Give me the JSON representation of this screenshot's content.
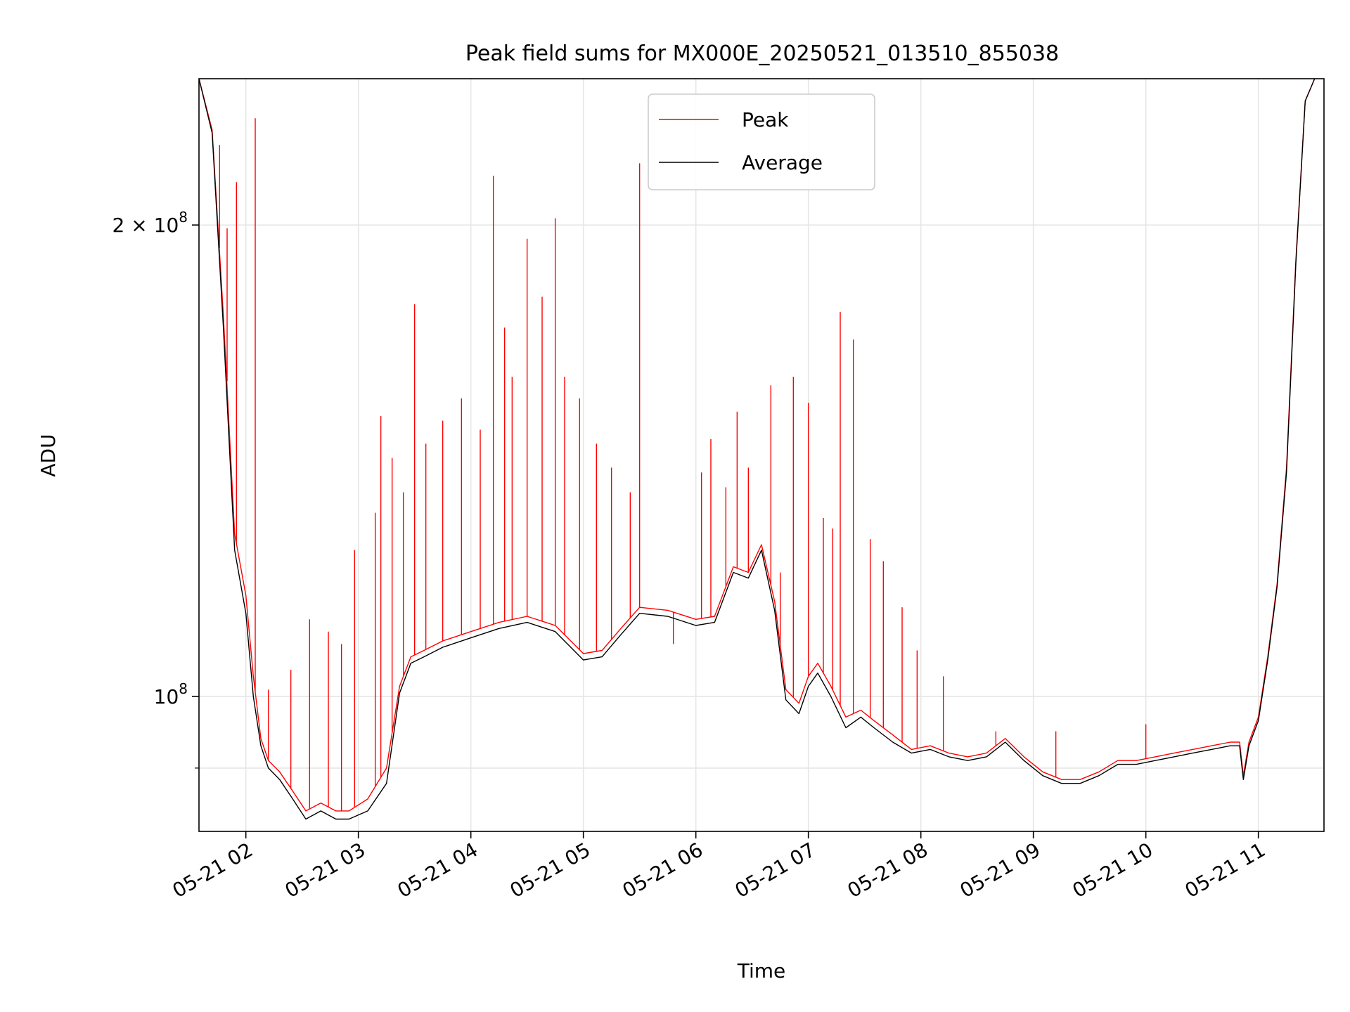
{
  "chart_data": {
    "type": "line",
    "title": "Peak field sums for MX000E_20250521_013510_855038",
    "xlabel": "Time",
    "ylabel": "ADU",
    "y_scale": "log",
    "xlim": [
      "2025-05-21 01:35",
      "2025-05-21 11:35"
    ],
    "ylim": [
      82000000,
      248000000
    ],
    "x_ticks": [
      "2025-05-21 02:00",
      "2025-05-21 03:00",
      "2025-05-21 04:00",
      "2025-05-21 05:00",
      "2025-05-21 06:00",
      "2025-05-21 07:00",
      "2025-05-21 08:00",
      "2025-05-21 09:00",
      "2025-05-21 10:00",
      "2025-05-21 11:00"
    ],
    "x_tick_labels": [
      "05-21 02",
      "05-21 03",
      "05-21 04",
      "05-21 05",
      "05-21 06",
      "05-21 07",
      "05-21 08",
      "05-21 09",
      "05-21 10",
      "05-21 11"
    ],
    "y_ticks": [
      {
        "value": 100000000,
        "base": "10",
        "exp": "8",
        "mantissa": ""
      },
      {
        "value": 200000000,
        "base": "10",
        "exp": "8",
        "mantissa": "2 × "
      }
    ],
    "y_minor_ticks": [
      90000000
    ],
    "grid": true,
    "legend_position": "upper center",
    "series": [
      {
        "name": "Peak",
        "color": "#ff0000",
        "x": [
          "2025-05-21 01:35",
          "2025-05-21 01:42",
          "2025-05-21 01:48",
          "2025-05-21 01:54",
          "2025-05-21 02:00",
          "2025-05-21 02:04",
          "2025-05-21 02:08",
          "2025-05-21 02:12",
          "2025-05-21 02:18",
          "2025-05-21 02:25",
          "2025-05-21 02:32",
          "2025-05-21 02:40",
          "2025-05-21 02:48",
          "2025-05-21 02:55",
          "2025-05-21 03:05",
          "2025-05-21 03:15",
          "2025-05-21 03:22",
          "2025-05-21 03:28",
          "2025-05-21 03:35",
          "2025-05-21 03:45",
          "2025-05-21 04:00",
          "2025-05-21 04:15",
          "2025-05-21 04:30",
          "2025-05-21 04:45",
          "2025-05-21 05:00",
          "2025-05-21 05:10",
          "2025-05-21 05:20",
          "2025-05-21 05:30",
          "2025-05-21 05:45",
          "2025-05-21 06:00",
          "2025-05-21 06:10",
          "2025-05-21 06:20",
          "2025-05-21 06:28",
          "2025-05-21 06:35",
          "2025-05-21 06:42",
          "2025-05-21 06:48",
          "2025-05-21 06:55",
          "2025-05-21 07:00",
          "2025-05-21 07:05",
          "2025-05-21 07:12",
          "2025-05-21 07:20",
          "2025-05-21 07:28",
          "2025-05-21 07:35",
          "2025-05-21 07:45",
          "2025-05-21 07:55",
          "2025-05-21 08:05",
          "2025-05-21 08:15",
          "2025-05-21 08:25",
          "2025-05-21 08:35",
          "2025-05-21 08:45",
          "2025-05-21 08:55",
          "2025-05-21 09:05",
          "2025-05-21 09:15",
          "2025-05-21 09:25",
          "2025-05-21 09:35",
          "2025-05-21 09:45",
          "2025-05-21 09:55",
          "2025-05-21 10:05",
          "2025-05-21 10:15",
          "2025-05-21 10:25",
          "2025-05-21 10:35",
          "2025-05-21 10:45",
          "2025-05-21 10:50",
          "2025-05-21 10:52",
          "2025-05-21 10:55",
          "2025-05-21 11:00",
          "2025-05-21 11:05",
          "2025-05-21 11:10",
          "2025-05-21 11:15",
          "2025-05-21 11:20",
          "2025-05-21 11:25",
          "2025-05-21 11:30"
        ],
        "y": [
          248000000,
          230000000,
          175000000,
          127000000,
          116000000,
          103000000,
          94000000,
          91000000,
          89500000,
          87000000,
          84500000,
          85500000,
          84500000,
          84500000,
          86000000,
          90000000,
          101500000,
          106000000,
          107000000,
          108500000,
          110000000,
          111500000,
          112500000,
          111000000,
          106500000,
          107000000,
          110500000,
          114000000,
          113500000,
          112000000,
          112500000,
          121000000,
          120000000,
          125000000,
          115000000,
          101000000,
          99000000,
          103000000,
          105000000,
          101500000,
          97000000,
          98000000,
          96500000,
          94500000,
          92500000,
          93000000,
          92000000,
          91500000,
          92000000,
          94000000,
          91500000,
          89500000,
          88500000,
          88500000,
          89500000,
          91000000,
          91000000,
          91500000,
          92000000,
          92500000,
          93000000,
          93500000,
          93500000,
          89000000,
          93500000,
          97000000,
          106000000,
          118000000,
          140000000,
          190000000,
          240000000,
          248000000
        ],
        "spikes": [
          {
            "x": "2025-05-21 01:46",
            "y": 225000000
          },
          {
            "x": "2025-05-21 01:50",
            "y": 199000000
          },
          {
            "x": "2025-05-21 01:55",
            "y": 213000000
          },
          {
            "x": "2025-05-21 02:05",
            "y": 234000000
          },
          {
            "x": "2025-05-21 02:12",
            "y": 101000000
          },
          {
            "x": "2025-05-21 02:24",
            "y": 104000000
          },
          {
            "x": "2025-05-21 02:34",
            "y": 112000000
          },
          {
            "x": "2025-05-21 02:44",
            "y": 110000000
          },
          {
            "x": "2025-05-21 02:51",
            "y": 108000000
          },
          {
            "x": "2025-05-21 02:58",
            "y": 124000000
          },
          {
            "x": "2025-05-21 03:09",
            "y": 131000000
          },
          {
            "x": "2025-05-21 03:12",
            "y": 151000000
          },
          {
            "x": "2025-05-21 03:18",
            "y": 142000000
          },
          {
            "x": "2025-05-21 03:24",
            "y": 135000000
          },
          {
            "x": "2025-05-21 03:30",
            "y": 178000000
          },
          {
            "x": "2025-05-21 03:36",
            "y": 145000000
          },
          {
            "x": "2025-05-21 03:45",
            "y": 150000000
          },
          {
            "x": "2025-05-21 03:55",
            "y": 155000000
          },
          {
            "x": "2025-05-21 04:05",
            "y": 148000000
          },
          {
            "x": "2025-05-21 04:12",
            "y": 215000000
          },
          {
            "x": "2025-05-21 04:18",
            "y": 172000000
          },
          {
            "x": "2025-05-21 04:22",
            "y": 160000000
          },
          {
            "x": "2025-05-21 04:30",
            "y": 196000000
          },
          {
            "x": "2025-05-21 04:38",
            "y": 180000000
          },
          {
            "x": "2025-05-21 04:45",
            "y": 202000000
          },
          {
            "x": "2025-05-21 04:50",
            "y": 160000000
          },
          {
            "x": "2025-05-21 04:58",
            "y": 155000000
          },
          {
            "x": "2025-05-21 05:07",
            "y": 145000000
          },
          {
            "x": "2025-05-21 05:15",
            "y": 140000000
          },
          {
            "x": "2025-05-21 05:25",
            "y": 135000000
          },
          {
            "x": "2025-05-21 05:30",
            "y": 219000000
          },
          {
            "x": "2025-05-21 05:48",
            "y": 108000000
          },
          {
            "x": "2025-05-21 06:03",
            "y": 139000000
          },
          {
            "x": "2025-05-21 06:08",
            "y": 146000000
          },
          {
            "x": "2025-05-21 06:16",
            "y": 136000000
          },
          {
            "x": "2025-05-21 06:22",
            "y": 152000000
          },
          {
            "x": "2025-05-21 06:28",
            "y": 140000000
          },
          {
            "x": "2025-05-21 06:40",
            "y": 158000000
          },
          {
            "x": "2025-05-21 06:45",
            "y": 120000000
          },
          {
            "x": "2025-05-21 06:52",
            "y": 160000000
          },
          {
            "x": "2025-05-21 07:00",
            "y": 154000000
          },
          {
            "x": "2025-05-21 07:08",
            "y": 130000000
          },
          {
            "x": "2025-05-21 07:13",
            "y": 128000000
          },
          {
            "x": "2025-05-21 07:17",
            "y": 176000000
          },
          {
            "x": "2025-05-21 07:24",
            "y": 169000000
          },
          {
            "x": "2025-05-21 07:33",
            "y": 126000000
          },
          {
            "x": "2025-05-21 07:40",
            "y": 122000000
          },
          {
            "x": "2025-05-21 07:50",
            "y": 114000000
          },
          {
            "x": "2025-05-21 07:58",
            "y": 107000000
          },
          {
            "x": "2025-05-21 08:12",
            "y": 103000000
          },
          {
            "x": "2025-05-21 08:40",
            "y": 95000000
          },
          {
            "x": "2025-05-21 09:12",
            "y": 95000000
          },
          {
            "x": "2025-05-21 10:00",
            "y": 96000000
          }
        ]
      },
      {
        "name": "Average",
        "color": "#000000",
        "x": [
          "2025-05-21 01:35",
          "2025-05-21 01:42",
          "2025-05-21 01:48",
          "2025-05-21 01:54",
          "2025-05-21 02:00",
          "2025-05-21 02:04",
          "2025-05-21 02:08",
          "2025-05-21 02:12",
          "2025-05-21 02:18",
          "2025-05-21 02:25",
          "2025-05-21 02:32",
          "2025-05-21 02:40",
          "2025-05-21 02:48",
          "2025-05-21 02:55",
          "2025-05-21 03:05",
          "2025-05-21 03:15",
          "2025-05-21 03:22",
          "2025-05-21 03:28",
          "2025-05-21 03:35",
          "2025-05-21 03:45",
          "2025-05-21 04:00",
          "2025-05-21 04:15",
          "2025-05-21 04:30",
          "2025-05-21 04:45",
          "2025-05-21 05:00",
          "2025-05-21 05:10",
          "2025-05-21 05:20",
          "2025-05-21 05:30",
          "2025-05-21 05:45",
          "2025-05-21 06:00",
          "2025-05-21 06:10",
          "2025-05-21 06:20",
          "2025-05-21 06:28",
          "2025-05-21 06:35",
          "2025-05-21 06:42",
          "2025-05-21 06:48",
          "2025-05-21 06:55",
          "2025-05-21 07:00",
          "2025-05-21 07:05",
          "2025-05-21 07:12",
          "2025-05-21 07:20",
          "2025-05-21 07:28",
          "2025-05-21 07:35",
          "2025-05-21 07:45",
          "2025-05-21 07:55",
          "2025-05-21 08:05",
          "2025-05-21 08:15",
          "2025-05-21 08:25",
          "2025-05-21 08:35",
          "2025-05-21 08:45",
          "2025-05-21 08:55",
          "2025-05-21 09:05",
          "2025-05-21 09:15",
          "2025-05-21 09:25",
          "2025-05-21 09:35",
          "2025-05-21 09:45",
          "2025-05-21 09:55",
          "2025-05-21 10:05",
          "2025-05-21 10:15",
          "2025-05-21 10:25",
          "2025-05-21 10:35",
          "2025-05-21 10:45",
          "2025-05-21 10:50",
          "2025-05-21 10:52",
          "2025-05-21 10:55",
          "2025-05-21 11:00",
          "2025-05-21 11:05",
          "2025-05-21 11:10",
          "2025-05-21 11:15",
          "2025-05-21 11:20",
          "2025-05-21 11:25",
          "2025-05-21 11:30"
        ],
        "y": [
          248000000,
          229000000,
          172000000,
          124000000,
          113000000,
          100000000,
          93000000,
          90000000,
          88500000,
          86000000,
          83500000,
          84500000,
          83500000,
          83500000,
          84500000,
          88000000,
          100500000,
          105000000,
          106000000,
          107500000,
          109000000,
          110500000,
          111500000,
          110000000,
          105500000,
          106000000,
          109500000,
          113000000,
          112500000,
          111000000,
          111500000,
          120000000,
          119000000,
          124000000,
          113500000,
          99500000,
          97500000,
          101500000,
          103500000,
          100000000,
          95500000,
          97000000,
          95500000,
          93500000,
          92000000,
          92500000,
          91500000,
          91000000,
          91500000,
          93500000,
          91000000,
          89000000,
          88000000,
          88000000,
          89000000,
          90500000,
          90500000,
          91000000,
          91500000,
          92000000,
          92500000,
          93000000,
          93000000,
          88500000,
          93000000,
          96500000,
          105500000,
          117500000,
          139000000,
          189000000,
          240000000,
          248000000
        ]
      }
    ]
  }
}
